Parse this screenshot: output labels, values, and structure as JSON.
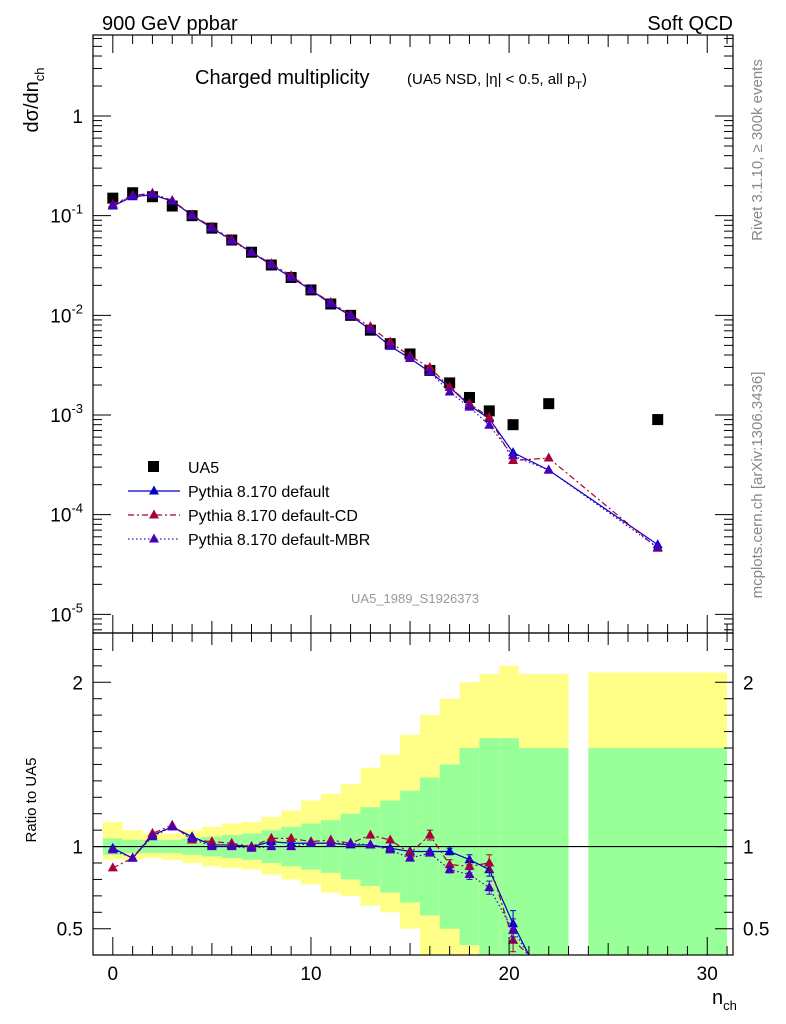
{
  "header": {
    "left": "900 GeV ppbar",
    "right": "Soft QCD"
  },
  "side_labels": {
    "rivet": "Rivet 3.1.10, ≥ 300k events",
    "mcplots": "mcplots.cern.ch [arXiv:1306.3436]"
  },
  "watermark": "UA5_1989_S1926373",
  "colors": {
    "data": "#000000",
    "default": "#0000cc",
    "cd": "#aa0033",
    "mbr": "#4400bb",
    "band_inner": "#99ff99",
    "band_outer": "#ffff88"
  },
  "chart_data": [
    {
      "type": "scatter",
      "title": "Charged multiplicity",
      "title_suffix": "(UA5 NSD, |η| < 0.5, all p",
      "title_suffix_sub": "T",
      "title_suffix_end": ")",
      "ylabel": "dσ/dn",
      "ylabel_sub": "ch",
      "yscale": "log",
      "xlim": [
        -1,
        31.3
      ],
      "ylim": [
        6.5e-06,
        6.5
      ],
      "y_ticks": [
        {
          "label": "1",
          "value": 1
        },
        {
          "label": "10",
          "exp": "-1",
          "value": 0.1
        },
        {
          "label": "10",
          "exp": "-2",
          "value": 0.01
        },
        {
          "label": "10",
          "exp": "-3",
          "value": 0.001
        },
        {
          "label": "10",
          "exp": "-4",
          "value": 0.0001
        },
        {
          "label": "10",
          "exp": "-5",
          "value": 1e-05
        }
      ],
      "legend": [
        {
          "label": "UA5",
          "key": "data"
        },
        {
          "label": "Pythia 8.170 default",
          "key": "default"
        },
        {
          "label": "Pythia 8.170 default-CD",
          "key": "cd"
        },
        {
          "label": "Pythia 8.170 default-MBR",
          "key": "mbr"
        }
      ],
      "series": [
        {
          "name": "UA5",
          "key": "data",
          "marker": "square",
          "x": [
            0,
            1,
            2,
            3,
            4,
            5,
            6,
            7,
            8,
            9,
            10,
            11,
            12,
            13,
            14,
            15,
            16,
            17,
            18,
            19,
            20.2,
            22,
            27.5
          ],
          "y": [
            0.15,
            0.17,
            0.155,
            0.125,
            0.1,
            0.075,
            0.057,
            0.043,
            0.032,
            0.024,
            0.018,
            0.013,
            0.01,
            0.0071,
            0.0052,
            0.0041,
            0.0028,
            0.0021,
            0.0015,
            0.0011,
            0.0008,
            0.0013,
            0.0009
          ]
        },
        {
          "name": "Pythia 8.170 default",
          "key": "default",
          "marker": "triangle",
          "dash": "",
          "x": [
            0,
            1,
            2,
            3,
            4,
            5,
            6,
            7,
            8,
            9,
            10,
            11,
            12,
            13,
            14,
            15,
            16,
            17,
            18,
            19,
            20.2,
            22,
            27.5
          ],
          "y": [
            0.125,
            0.155,
            0.162,
            0.14,
            0.101,
            0.075,
            0.057,
            0.043,
            0.032,
            0.024,
            0.018,
            0.013,
            0.0099,
            0.0072,
            0.0049,
            0.0037,
            0.0027,
            0.0019,
            0.00125,
            0.00092,
            0.00042,
            0.00028,
            5e-05
          ]
        },
        {
          "name": "Pythia 8.170 default-CD",
          "key": "cd",
          "marker": "triangle",
          "dash": "6,3,2,3",
          "x": [
            0,
            1,
            2,
            3,
            4,
            5,
            6,
            7,
            8,
            9,
            10,
            11,
            12,
            13,
            14,
            15,
            16,
            17,
            18,
            19,
            20.2,
            22,
            27.5
          ],
          "y": [
            0.13,
            0.16,
            0.168,
            0.142,
            0.102,
            0.077,
            0.058,
            0.043,
            0.033,
            0.025,
            0.018,
            0.0135,
            0.0101,
            0.0077,
            0.0054,
            0.0039,
            0.003,
            0.0019,
            0.0013,
            0.00095,
            0.00035,
            0.00037,
            4.6e-05
          ]
        },
        {
          "name": "Pythia 8.170 default-MBR",
          "key": "mbr",
          "marker": "triangle",
          "dash": "1.5,2.5",
          "x": [
            0,
            1,
            2,
            3,
            4,
            5,
            6,
            7,
            8,
            9,
            10,
            11,
            12,
            13,
            14,
            15,
            16,
            17,
            18,
            19,
            20.2,
            22,
            27.5
          ],
          "y": [
            0.127,
            0.158,
            0.165,
            0.14,
            0.1,
            0.075,
            0.056,
            0.043,
            0.032,
            0.024,
            0.018,
            0.0132,
            0.0099,
            0.0072,
            0.0049,
            0.0037,
            0.0027,
            0.0017,
            0.0012,
            0.00079,
            0.00039,
            0.00028,
            4.7e-05
          ]
        }
      ]
    },
    {
      "type": "line",
      "ylabel": "Ratio to UA5",
      "xlabel": "n",
      "xlabel_sub": "ch",
      "xlim": [
        -1,
        31.3
      ],
      "ylim": [
        0.34,
        2.3
      ],
      "x_ticks": [
        0,
        10,
        20,
        30
      ],
      "y_ticks": [
        {
          "label": "0.5",
          "value": 0.5
        },
        {
          "label": "1",
          "value": 1
        },
        {
          "label": "2",
          "value": 2
        }
      ],
      "reference_line": 1,
      "bands": {
        "edges": [
          -0.5,
          0.5,
          1.5,
          2.5,
          3.5,
          4.5,
          5.5,
          6.5,
          7.5,
          8.5,
          9.5,
          10.5,
          11.5,
          12.5,
          13.5,
          14.5,
          15.5,
          16.5,
          17.5,
          18.5,
          19.5,
          20.5,
          23,
          24,
          31
        ],
        "inner_lo": [
          0.95,
          0.96,
          0.96,
          0.96,
          0.95,
          0.94,
          0.93,
          0.92,
          0.9,
          0.88,
          0.86,
          0.84,
          0.8,
          0.76,
          0.72,
          0.66,
          0.58,
          0.5,
          0.4,
          0.34,
          0.34,
          0.34,
          null,
          0.34
        ],
        "inner_hi": [
          1.05,
          1.04,
          1.04,
          1.04,
          1.05,
          1.06,
          1.07,
          1.08,
          1.1,
          1.12,
          1.14,
          1.16,
          1.2,
          1.24,
          1.28,
          1.34,
          1.42,
          1.5,
          1.6,
          1.66,
          1.66,
          1.6,
          null,
          1.6
        ],
        "outer_lo": [
          0.92,
          0.92,
          0.93,
          0.92,
          0.9,
          0.88,
          0.87,
          0.86,
          0.83,
          0.8,
          0.77,
          0.72,
          0.7,
          0.64,
          0.6,
          0.5,
          0.34,
          0.34,
          0.34,
          0.34,
          0.34,
          0.34,
          null,
          0.34
        ],
        "outer_hi": [
          1.15,
          1.1,
          1.08,
          1.08,
          1.1,
          1.12,
          1.14,
          1.15,
          1.18,
          1.22,
          1.28,
          1.32,
          1.38,
          1.48,
          1.56,
          1.68,
          1.8,
          1.9,
          2.0,
          2.05,
          2.1,
          2.05,
          null,
          2.06
        ]
      },
      "series": [
        {
          "name": "Pythia 8.170 default",
          "key": "default",
          "marker": "triangle",
          "dash": "",
          "x": [
            0,
            1,
            2,
            3,
            4,
            5,
            6,
            7,
            8,
            9,
            10,
            11,
            12,
            13,
            14,
            15,
            16,
            17,
            18,
            19,
            20.2,
            21
          ],
          "y": [
            0.99,
            0.93,
            1.07,
            1.12,
            1.06,
            1.01,
            1.01,
            1.0,
            1.03,
            1.02,
            1.02,
            1.02,
            1.01,
            1.01,
            0.99,
            0.97,
            0.97,
            0.97,
            0.92,
            0.86,
            0.53,
            0.34
          ],
          "err": [
            0,
            0,
            0,
            0,
            0,
            0,
            0,
            0,
            0,
            0,
            0,
            0,
            0,
            0,
            0,
            0,
            0,
            0.02,
            0.03,
            0.04,
            0.08,
            0
          ]
        },
        {
          "name": "Pythia 8.170 default-CD",
          "key": "cd",
          "marker": "triangle",
          "dash": "6,3,2,3",
          "x": [
            0,
            1,
            2,
            3,
            4,
            5,
            6,
            7,
            8,
            9,
            10,
            11,
            12,
            13,
            14,
            15,
            16,
            17,
            18,
            19,
            20.2,
            21
          ],
          "y": [
            0.87,
            0.93,
            1.08,
            1.13,
            1.04,
            1.03,
            1.02,
            1.0,
            1.05,
            1.05,
            1.03,
            1.04,
            1.02,
            1.07,
            1.04,
            0.96,
            1.07,
            0.89,
            0.88,
            0.9,
            0.43,
            0.34
          ],
          "err": [
            0,
            0,
            0,
            0,
            0,
            0,
            0,
            0,
            0,
            0,
            0,
            0,
            0,
            0,
            0,
            0,
            0.03,
            0.03,
            0.04,
            0.05,
            0.07,
            0
          ]
        },
        {
          "name": "Pythia 8.170 default-MBR",
          "key": "mbr",
          "marker": "triangle",
          "dash": "1.5,2.5",
          "x": [
            0,
            1,
            2,
            3,
            4,
            5,
            6,
            7,
            8,
            9,
            10,
            11,
            12,
            13,
            14,
            15,
            16,
            17,
            18,
            19,
            20.2,
            21
          ],
          "y": [
            0.98,
            0.93,
            1.06,
            1.12,
            1.05,
            1.0,
            1.0,
            0.99,
            1.0,
            1.0,
            1.02,
            1.02,
            1.02,
            1.01,
            0.98,
            0.93,
            0.96,
            0.86,
            0.83,
            0.75,
            0.49,
            0.34
          ],
          "err": [
            0,
            0,
            0,
            0,
            0,
            0,
            0,
            0,
            0,
            0,
            0,
            0,
            0,
            0,
            0,
            0,
            0,
            0.02,
            0.03,
            0.04,
            0.07,
            0
          ]
        }
      ]
    }
  ]
}
